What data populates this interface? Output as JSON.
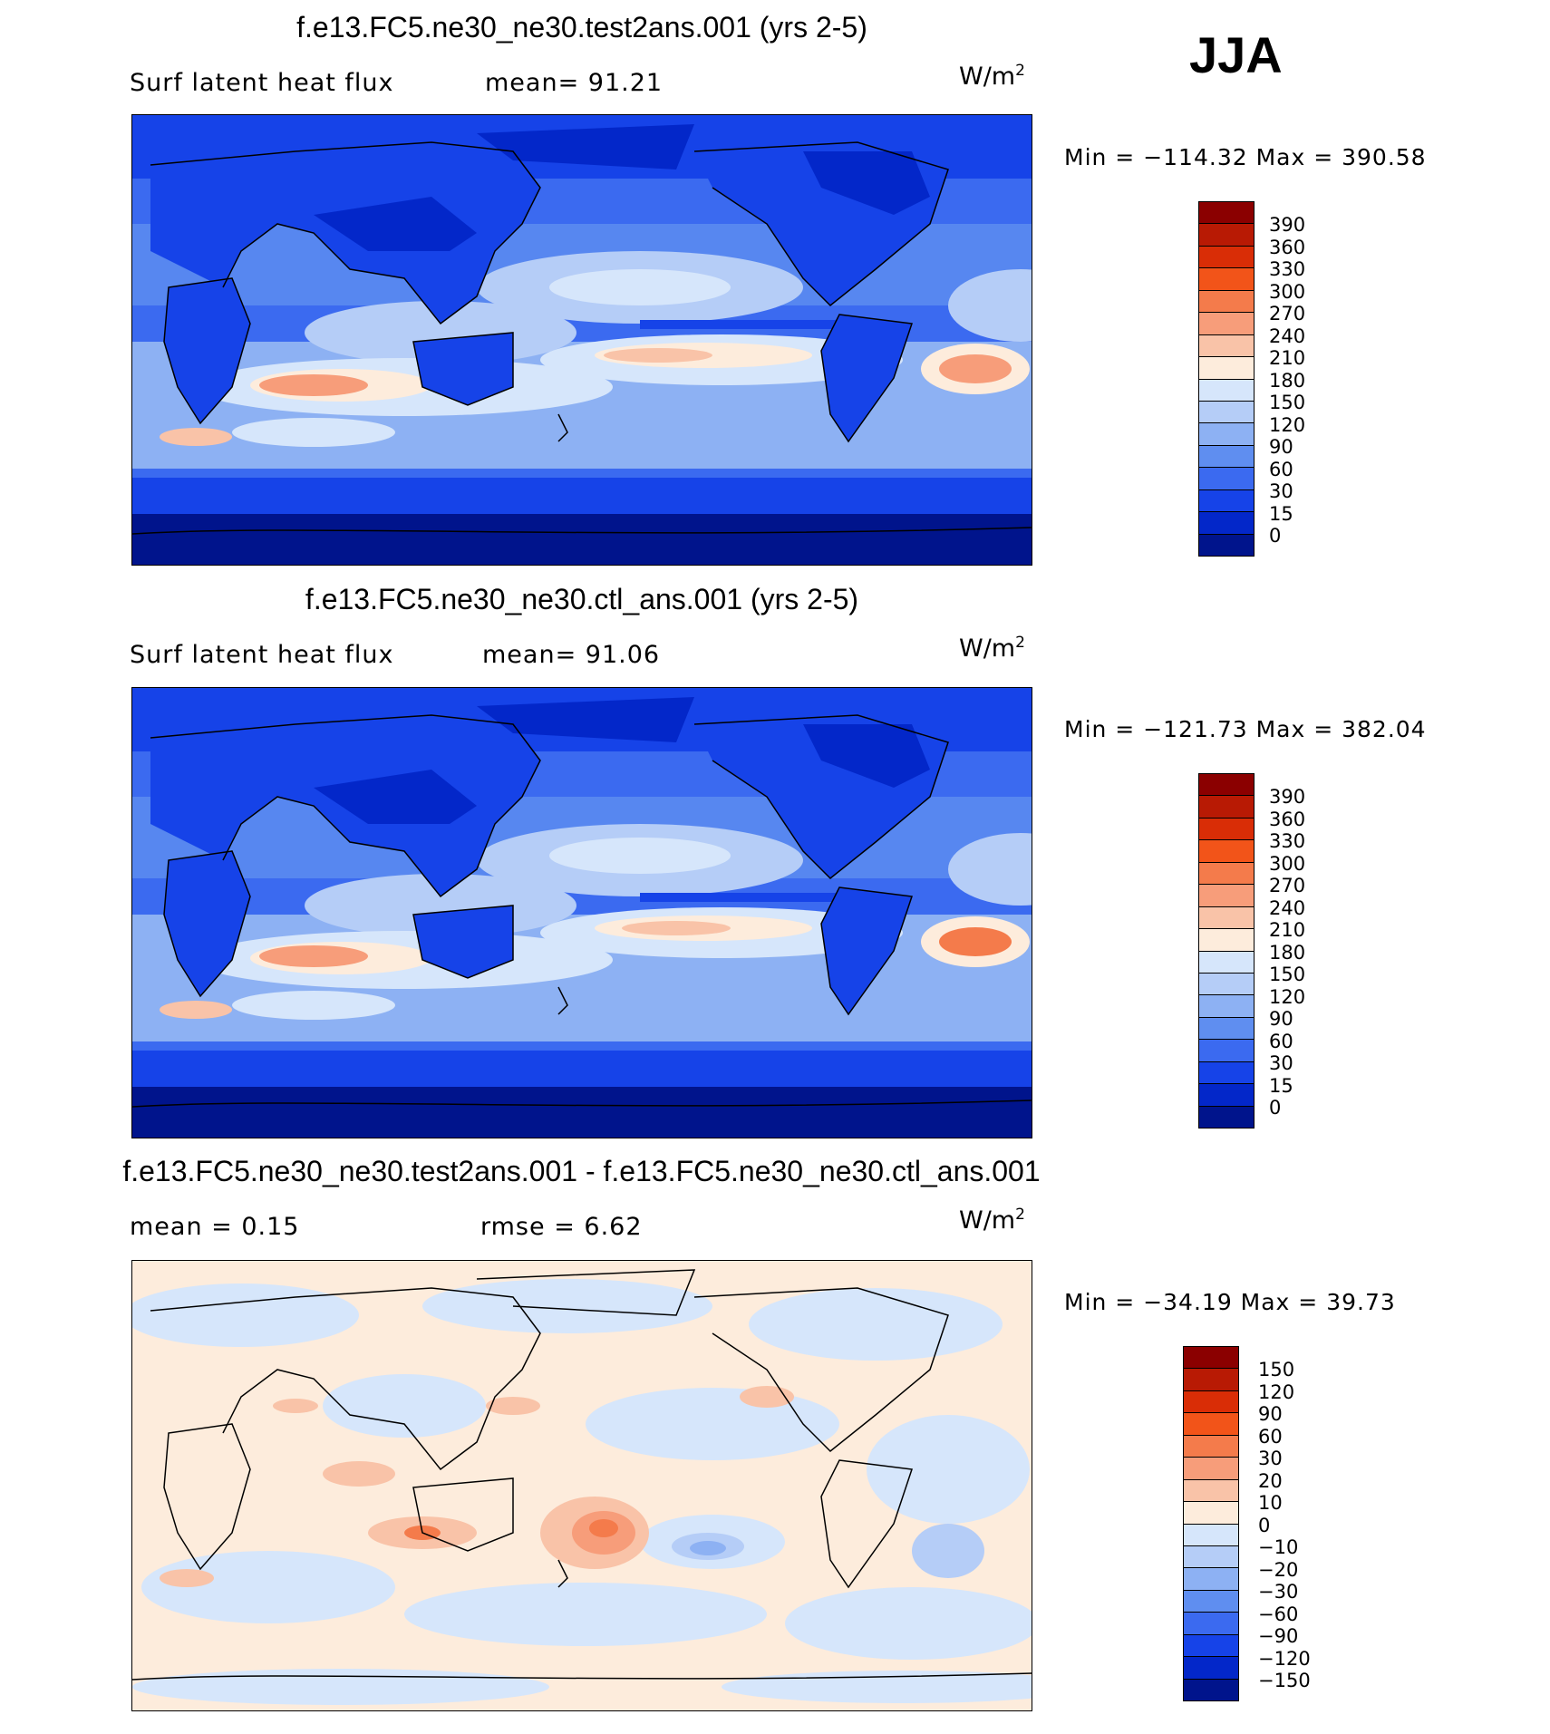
{
  "season": "JJA",
  "panels": [
    {
      "title": "f.e13.FC5.ne30_ne30.test2ans.001 (yrs 2-5)",
      "left_label": "Surf latent heat flux",
      "right_label": "mean=   91.21",
      "units_base": "W/m",
      "units_exp": "2",
      "minmax": "Min  =  −114.32  Max  =  390.58",
      "field": "latent heat flux",
      "colorbar_labels": [
        "390",
        "360",
        "330",
        "300",
        "270",
        "240",
        "210",
        "180",
        "150",
        "120",
        "90",
        "60",
        "30",
        "15",
        "0"
      ],
      "colorbar_colors": [
        "#8b0000",
        "#b81a04",
        "#d92d06",
        "#f25419",
        "#f47b4b",
        "#f79d7a",
        "#f9c3a8",
        "#fdecdc",
        "#d6e6fb",
        "#b5cdf7",
        "#8db1f3",
        "#5f8ef0",
        "#3b6af0",
        "#1643e8",
        "#0327c9",
        "#00148c"
      ]
    },
    {
      "title": "f.e13.FC5.ne30_ne30.ctl_ans.001 (yrs 2-5)",
      "left_label": "Surf latent heat flux",
      "right_label": "mean=   91.06",
      "units_base": "W/m",
      "units_exp": "2",
      "minmax": "Min  =  −121.73  Max  =  382.04",
      "field": "latent heat flux",
      "colorbar_labels": [
        "390",
        "360",
        "330",
        "300",
        "270",
        "240",
        "210",
        "180",
        "150",
        "120",
        "90",
        "60",
        "30",
        "15",
        "0"
      ],
      "colorbar_colors": [
        "#8b0000",
        "#b81a04",
        "#d92d06",
        "#f25419",
        "#f47b4b",
        "#f79d7a",
        "#f9c3a8",
        "#fdecdc",
        "#d6e6fb",
        "#b5cdf7",
        "#8db1f3",
        "#5f8ef0",
        "#3b6af0",
        "#1643e8",
        "#0327c9",
        "#00148c"
      ]
    },
    {
      "title": "f.e13.FC5.ne30_ne30.test2ans.001 - f.e13.FC5.ne30_ne30.ctl_ans.001",
      "left_label": "mean  =     0.15",
      "right_label": "rmse  =     6.62",
      "units_base": "W/m",
      "units_exp": "2",
      "minmax": "Min  =  −34.19  Max  =    39.73",
      "field": "difference",
      "colorbar_labels": [
        "150",
        "120",
        "90",
        "60",
        "30",
        "20",
        "10",
        "0",
        "−10",
        "−20",
        "−30",
        "−60",
        "−90",
        "−120",
        "−150"
      ],
      "colorbar_colors": [
        "#8b0000",
        "#b81a04",
        "#d92d06",
        "#f25419",
        "#f47b4b",
        "#f79d7a",
        "#f9c3a8",
        "#fdecdc",
        "#d6e6fb",
        "#b5cdf7",
        "#8db1f3",
        "#5f8ef0",
        "#3b6af0",
        "#1643e8",
        "#0327c9",
        "#00148c"
      ]
    }
  ]
}
